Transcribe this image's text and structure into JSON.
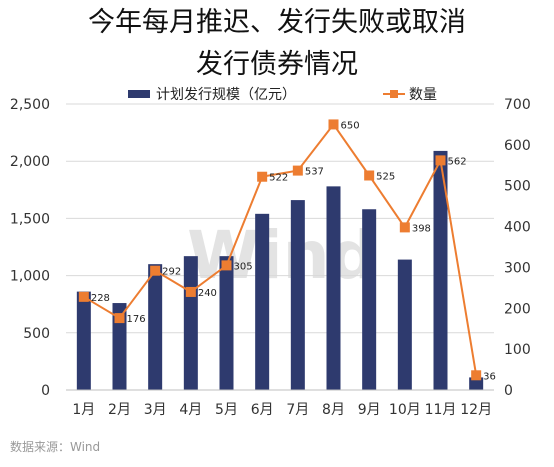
{
  "chart_data": {
    "type": "bar",
    "title_line1": "今年每月推迟、发行失败或取消",
    "title_line2": "发行债券情况",
    "categories": [
      "1月",
      "2月",
      "3月",
      "4月",
      "5月",
      "6月",
      "7月",
      "8月",
      "9月",
      "10月",
      "11月",
      "12月"
    ],
    "series": [
      {
        "name": "计划发行规模（亿元）",
        "type": "bar",
        "axis": "left",
        "color": "#2e3a6e",
        "values": [
          860,
          760,
          1100,
          1170,
          1170,
          1540,
          1660,
          1780,
          1580,
          1140,
          2090,
          110
        ]
      },
      {
        "name": "数量",
        "type": "line",
        "axis": "right",
        "color": "#ed7d31",
        "values": [
          228,
          176,
          292,
          240,
          305,
          522,
          537,
          650,
          525,
          398,
          562,
          36
        ],
        "data_labels": [
          "228",
          "176",
          "292",
          "240",
          "305",
          "522",
          "537",
          "650",
          "525",
          "398",
          "562",
          "36"
        ]
      }
    ],
    "y_left": {
      "min": 0,
      "max": 2500,
      "ticks": [
        0,
        500,
        1000,
        1500,
        2000,
        2500
      ],
      "tick_labels": [
        "0",
        "500",
        "1,000",
        "1,500",
        "2,000",
        "2,500"
      ]
    },
    "y_right": {
      "min": 0,
      "max": 700,
      "ticks": [
        0,
        100,
        200,
        300,
        400,
        500,
        600,
        700
      ],
      "tick_labels": [
        "0",
        "100",
        "200",
        "300",
        "400",
        "500",
        "600",
        "700"
      ]
    },
    "legend_position": "top",
    "grid": true
  },
  "source_note": "数据来源：Wind",
  "watermark": "Wind"
}
